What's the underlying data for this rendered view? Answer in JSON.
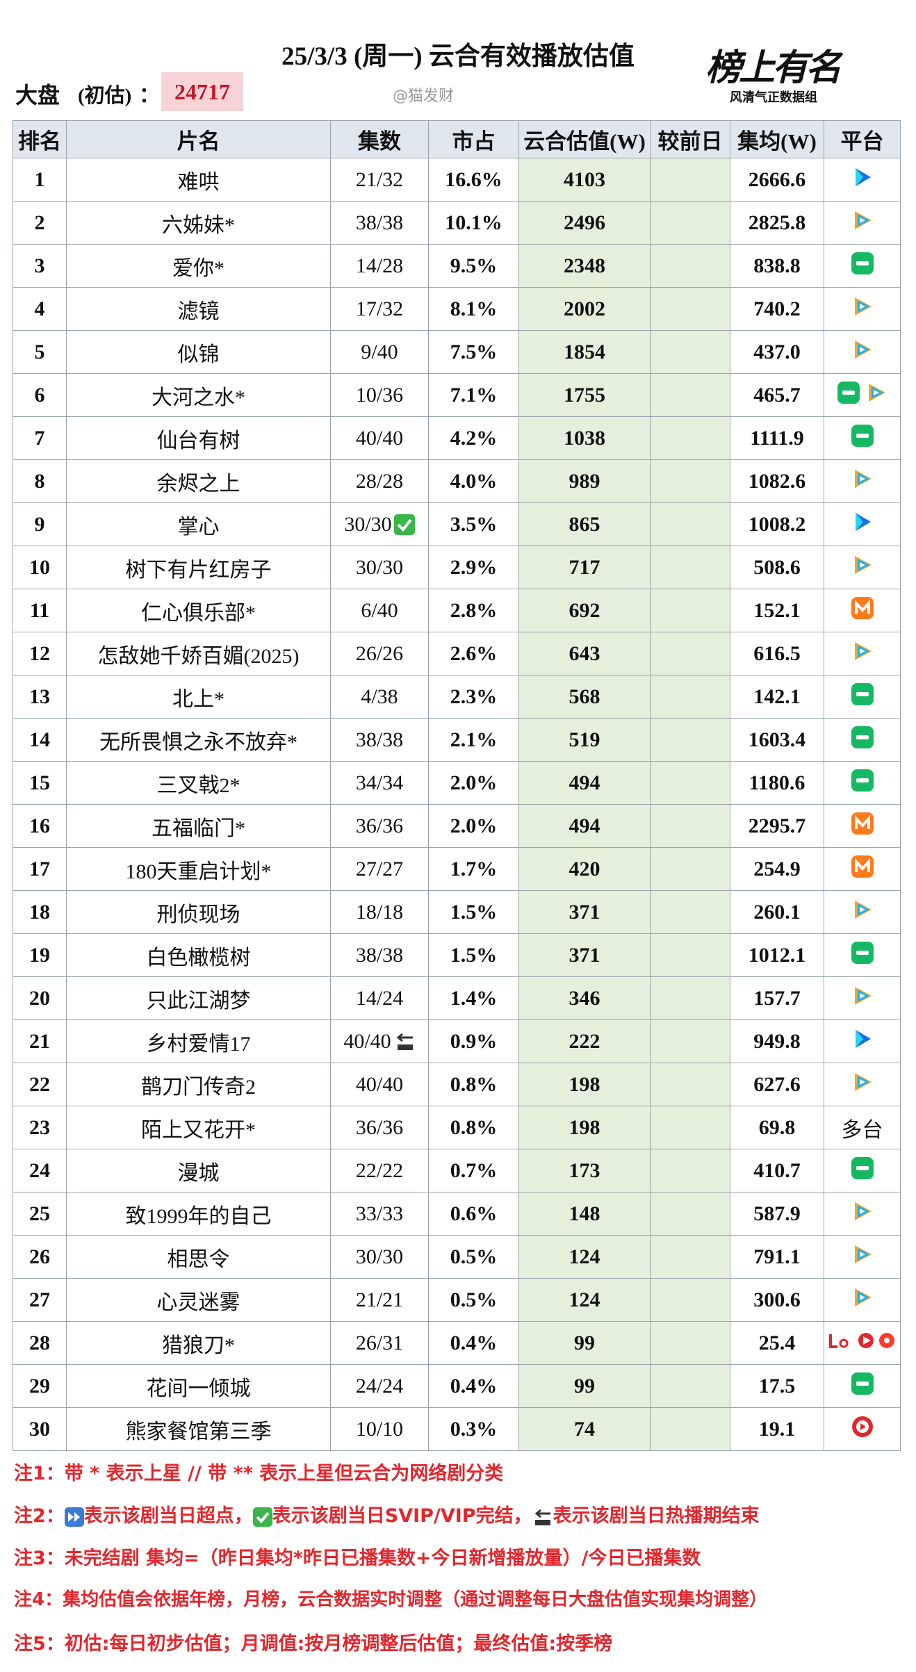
{
  "header": {
    "title": "25/3/3 (周一) 云合有效播放估值",
    "market_label": "大盘",
    "market_note": "(初估)",
    "colon": "：",
    "market_value": 24717,
    "watermark": "@猫发财",
    "logo": "榜上有名",
    "logo_sub": "风清气正数据组"
  },
  "table": {
    "columns": [
      "排名",
      "片名",
      "集数",
      "市占",
      "云合估值(W)",
      "较前日",
      "集均(W)",
      "平台"
    ],
    "rows": [
      [
        1,
        "难哄",
        "21/32",
        "16.6%",
        4103,
        "2666.6"
      ],
      [
        2,
        "六姊妹*",
        "38/38",
        "10.1%",
        2496,
        "2825.8"
      ],
      [
        3,
        "爱你*",
        "14/28",
        "9.5%",
        2348,
        "838.8"
      ],
      [
        4,
        "滤镜",
        "17/32",
        "8.1%",
        2002,
        "740.2"
      ],
      [
        5,
        "似锦",
        "9/40",
        "7.5%",
        1854,
        "437.0"
      ],
      [
        6,
        "大河之水*",
        "10/36",
        "7.1%",
        1755,
        "465.7"
      ],
      [
        7,
        "仙台有树",
        "40/40",
        "4.2%",
        1038,
        "1111.9"
      ],
      [
        8,
        "余烬之上",
        "28/28",
        "4.0%",
        989,
        "1082.6"
      ],
      [
        9,
        "掌心",
        "30/30",
        "3.5%",
        865,
        "1008.2"
      ],
      [
        10,
        "树下有片红房子",
        "30/30",
        "2.9%",
        717,
        "508.6"
      ],
      [
        11,
        "仁心俱乐部*",
        "6/40",
        "2.8%",
        692,
        "152.1"
      ],
      [
        12,
        "怎敌她千娇百媚(2025)",
        "26/26",
        "2.6%",
        643,
        "616.5"
      ],
      [
        13,
        "北上*",
        "4/38",
        "2.3%",
        568,
        "142.1"
      ],
      [
        14,
        "无所畏惧之永不放弃*",
        "38/38",
        "2.1%",
        519,
        "1603.4"
      ],
      [
        15,
        "三叉戟2*",
        "34/34",
        "2.0%",
        494,
        "1180.6"
      ],
      [
        16,
        "五福临门*",
        "36/36",
        "2.0%",
        494,
        "2295.7"
      ],
      [
        17,
        "180天重启计划*",
        "27/27",
        "1.7%",
        420,
        "254.9"
      ],
      [
        18,
        "刑侦现场",
        "18/18",
        "1.5%",
        371,
        "260.1"
      ],
      [
        19,
        "白色橄榄树",
        "38/38",
        "1.5%",
        371,
        "1012.1"
      ],
      [
        20,
        "只此江湖梦",
        "14/24",
        "1.4%",
        346,
        "157.7"
      ],
      [
        21,
        "乡村爱情17",
        "40/40",
        "0.9%",
        222,
        "949.8"
      ],
      [
        22,
        "鹊刀门传奇2",
        "40/40",
        "0.8%",
        198,
        "627.6"
      ],
      [
        23,
        "陌上又花开*",
        "36/36",
        "0.8%",
        198,
        "69.8",
        "多台"
      ],
      [
        24,
        "漫城",
        "22/22",
        "0.7%",
        173,
        "410.7"
      ],
      [
        25,
        "致1999年的自己",
        "33/33",
        "0.6%",
        148,
        "587.9"
      ],
      [
        26,
        "相思令",
        "30/30",
        "0.5%",
        124,
        "791.1"
      ],
      [
        27,
        "心灵迷雾",
        "21/21",
        "0.5%",
        124,
        "300.6"
      ],
      [
        28,
        "猎狼刀*",
        "26/31",
        "0.4%",
        99,
        "25.4"
      ],
      [
        29,
        "花间一倾城",
        "24/24",
        "0.4%",
        99,
        "17.5"
      ],
      [
        30,
        "熊家餐馆第三季",
        "10/10",
        "0.3%",
        74,
        "19.1"
      ]
    ]
  },
  "notes": {
    "n1": "注1：带 * 表示上星 // 带 ** 表示上星但云合为网络剧分类",
    "n2": [
      "注2：",
      "表示该剧当日超点，",
      "表示该剧当日SVIP/VIP完结，",
      "表示该剧当日热播期结束"
    ],
    "n3": "注3：未完结剧 集均=（昨日集均*昨日已播集数+今日新增播放量）/今日已播集数",
    "n4": "注4：集均估值会依据年榜，月榜，云合数据实时调整（通过调整每日大盘估值实现集均调整）",
    "n5": "注5：初估:每日初步估值；月调值:按月榜调整后估值；最终估值:按季榜"
  }
}
